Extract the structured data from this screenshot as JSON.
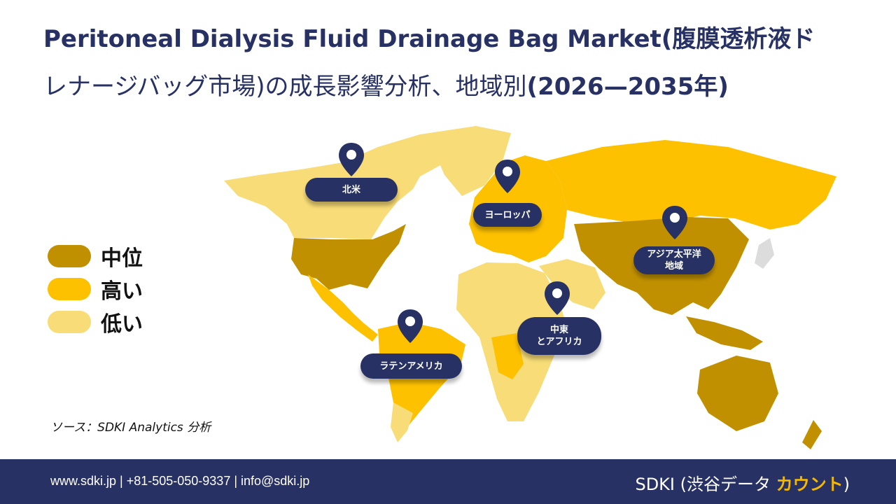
{
  "title": {
    "line1": "Peritoneal Dialysis Fluid Drainage Bag Market(腹膜透析液ド",
    "line2a": "レナージバッグ市場)",
    "line2b": "の成長影響分析、地域別",
    "line2c": "(2026—2035年)"
  },
  "legend": [
    {
      "label": "中位",
      "color": "#c09000"
    },
    {
      "label": "高い",
      "color": "#fdc100"
    },
    {
      "label": "低い",
      "color": "#f8dc77"
    }
  ],
  "regions": {
    "north_america": "北米",
    "europe": "ヨーロッパ",
    "asia_pacific_1": "アジア太平洋",
    "asia_pacific_2": "地域",
    "mea_1": "中東",
    "mea_2": "とアフリカ",
    "latin_america": "ラテンアメリカ"
  },
  "source": "ソース：SDKI Analytics 分析",
  "footer": {
    "contact": "www.sdki.jp | +81-505-050-9337 | info@sdki.jp",
    "brand_prefix": "SDKI (渋谷データ ",
    "brand_accent": "カウント",
    "brand_suffix": ")"
  },
  "colors": {
    "navy": "#273163",
    "medium": "#c09000",
    "high": "#fdc100",
    "low": "#f8dc77"
  }
}
